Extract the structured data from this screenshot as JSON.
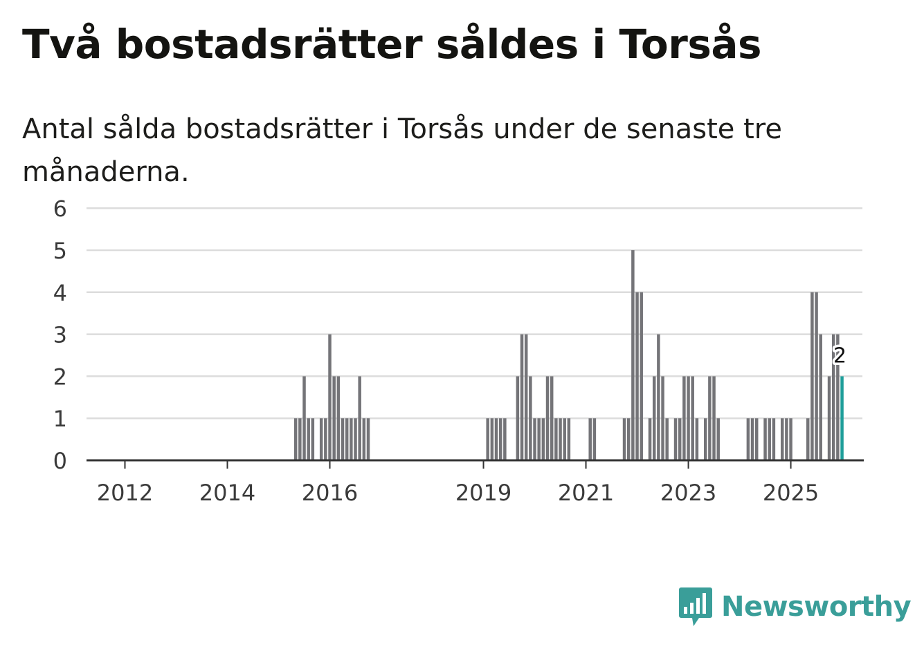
{
  "header": {
    "title": "Två bostadsrätter såldes i Torsås",
    "subtitle": "Antal sålda bostadsrätter i Torsås under de senaste tre månaderna."
  },
  "brand": {
    "name": "Newsworthy",
    "icon": "newsworthy-logo-icon",
    "color": "#3a9e99"
  },
  "colors": {
    "bar": "#747478",
    "highlight": "#1f9e9a",
    "grid": "#dcdcdc",
    "axis": "#333333"
  },
  "chart_data": {
    "type": "bar",
    "title": "Två bostadsrätter såldes i Torsås",
    "subtitle": "Antal sålda bostadsrätter i Torsås under de senaste tre månaderna.",
    "xlabel": "",
    "ylabel": "",
    "ylim": [
      0,
      6
    ],
    "yticks": [
      0,
      1,
      2,
      3,
      4,
      5,
      6
    ],
    "grid": true,
    "x_unit": "month index (0 = Jan 2011)",
    "xticks": [
      {
        "label": "2012",
        "month_index": 12
      },
      {
        "label": "2014",
        "month_index": 36
      },
      {
        "label": "2016",
        "month_index": 60
      },
      {
        "label": "2019",
        "month_index": 96
      },
      {
        "label": "2021",
        "month_index": 120
      },
      {
        "label": "2023",
        "month_index": 144
      },
      {
        "label": "2025",
        "month_index": 168
      }
    ],
    "series": [
      {
        "name": "Sålda bostadsrätter",
        "points": [
          {
            "x": 52,
            "y": 1
          },
          {
            "x": 53,
            "y": 1
          },
          {
            "x": 54,
            "y": 2
          },
          {
            "x": 55,
            "y": 1
          },
          {
            "x": 56,
            "y": 1
          },
          {
            "x": 58,
            "y": 1
          },
          {
            "x": 59,
            "y": 1
          },
          {
            "x": 60,
            "y": 3
          },
          {
            "x": 61,
            "y": 2
          },
          {
            "x": 62,
            "y": 2
          },
          {
            "x": 63,
            "y": 1
          },
          {
            "x": 64,
            "y": 1
          },
          {
            "x": 65,
            "y": 1
          },
          {
            "x": 66,
            "y": 1
          },
          {
            "x": 67,
            "y": 2
          },
          {
            "x": 68,
            "y": 1
          },
          {
            "x": 69,
            "y": 1
          },
          {
            "x": 97,
            "y": 1
          },
          {
            "x": 98,
            "y": 1
          },
          {
            "x": 99,
            "y": 1
          },
          {
            "x": 100,
            "y": 1
          },
          {
            "x": 101,
            "y": 1
          },
          {
            "x": 104,
            "y": 2
          },
          {
            "x": 105,
            "y": 3
          },
          {
            "x": 106,
            "y": 3
          },
          {
            "x": 107,
            "y": 2
          },
          {
            "x": 108,
            "y": 1
          },
          {
            "x": 109,
            "y": 1
          },
          {
            "x": 110,
            "y": 1
          },
          {
            "x": 111,
            "y": 2
          },
          {
            "x": 112,
            "y": 2
          },
          {
            "x": 113,
            "y": 1
          },
          {
            "x": 114,
            "y": 1
          },
          {
            "x": 115,
            "y": 1
          },
          {
            "x": 116,
            "y": 1
          },
          {
            "x": 121,
            "y": 1
          },
          {
            "x": 122,
            "y": 1
          },
          {
            "x": 129,
            "y": 1
          },
          {
            "x": 130,
            "y": 1
          },
          {
            "x": 131,
            "y": 5
          },
          {
            "x": 132,
            "y": 4
          },
          {
            "x": 133,
            "y": 4
          },
          {
            "x": 135,
            "y": 1
          },
          {
            "x": 136,
            "y": 2
          },
          {
            "x": 137,
            "y": 3
          },
          {
            "x": 138,
            "y": 2
          },
          {
            "x": 139,
            "y": 1
          },
          {
            "x": 141,
            "y": 1
          },
          {
            "x": 142,
            "y": 1
          },
          {
            "x": 143,
            "y": 2
          },
          {
            "x": 144,
            "y": 2
          },
          {
            "x": 145,
            "y": 2
          },
          {
            "x": 146,
            "y": 1
          },
          {
            "x": 148,
            "y": 1
          },
          {
            "x": 149,
            "y": 2
          },
          {
            "x": 150,
            "y": 2
          },
          {
            "x": 151,
            "y": 1
          },
          {
            "x": 158,
            "y": 1
          },
          {
            "x": 159,
            "y": 1
          },
          {
            "x": 160,
            "y": 1
          },
          {
            "x": 162,
            "y": 1
          },
          {
            "x": 163,
            "y": 1
          },
          {
            "x": 164,
            "y": 1
          },
          {
            "x": 166,
            "y": 1
          },
          {
            "x": 167,
            "y": 1
          },
          {
            "x": 168,
            "y": 1
          },
          {
            "x": 172,
            "y": 1
          },
          {
            "x": 173,
            "y": 4
          },
          {
            "x": 174,
            "y": 4
          },
          {
            "x": 175,
            "y": 3
          },
          {
            "x": 177,
            "y": 2
          },
          {
            "x": 178,
            "y": 3
          },
          {
            "x": 179,
            "y": 3
          },
          {
            "x": 180,
            "y": 2,
            "highlight": true
          }
        ]
      }
    ],
    "annotations": [
      {
        "x": 180,
        "y": 2,
        "text": "2"
      }
    ]
  }
}
